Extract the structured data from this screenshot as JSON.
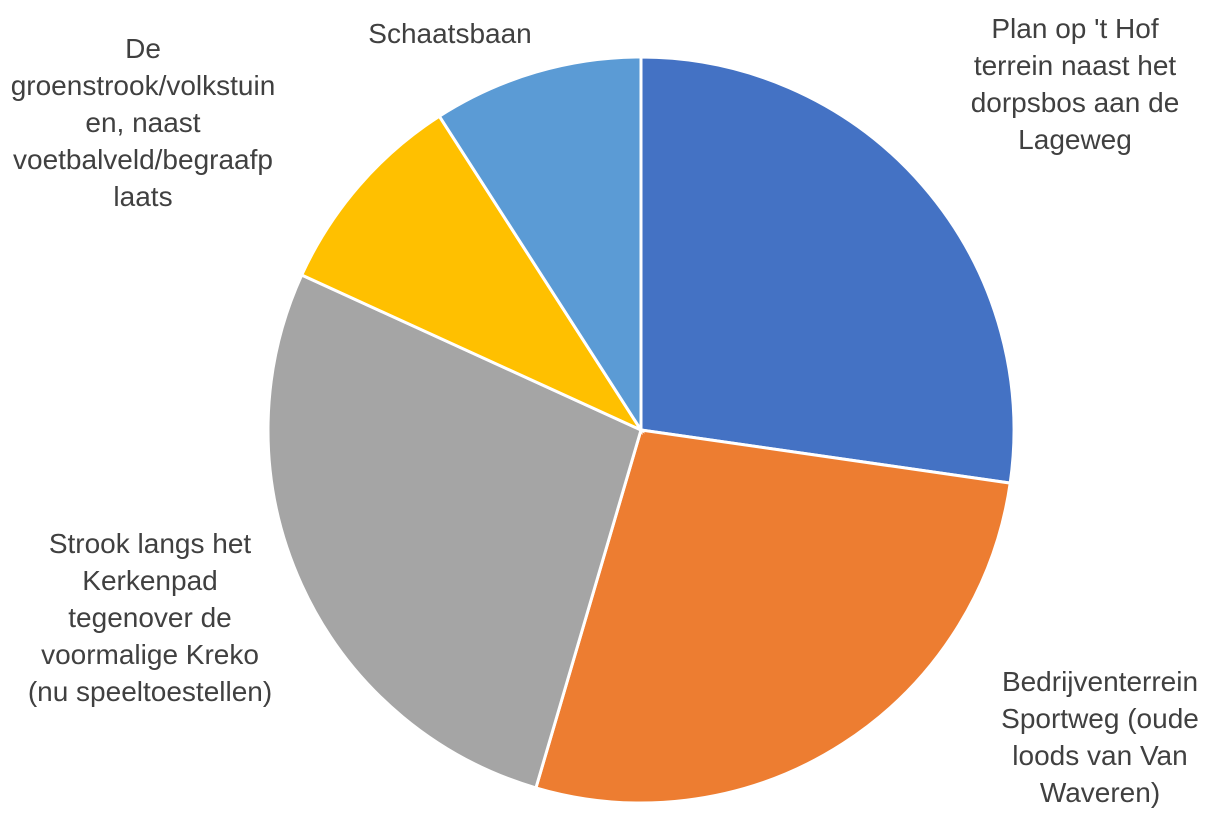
{
  "chart_data": {
    "type": "pie",
    "categories": [
      "Plan op 't Hof terrein naast het dorpsbos aan de Lageweg",
      "Bedrijventerrein Sportweg (oude loods van Van Waveren)",
      "Strook langs het Kerkenpad tegenover de voormalige Kreko (nu speeltoestellen)",
      "De groenstrook/volkstuinen, naast voetbalveld/begraafplaats",
      "Schaatsbaan"
    ],
    "values": [
      3,
      3,
      3,
      1,
      1
    ],
    "colors": [
      "#4472c4",
      "#ed7d31",
      "#a5a5a5",
      "#ffc000",
      "#5b9bd5"
    ]
  }
}
